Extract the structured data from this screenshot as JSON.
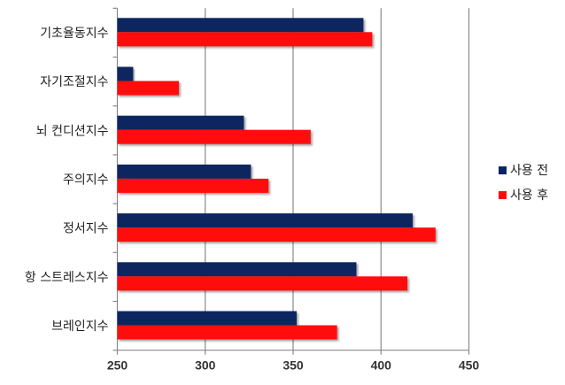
{
  "chart_data": {
    "type": "bar",
    "orientation": "horizontal",
    "categories": [
      "기초율동지수",
      "자기조절지수",
      "뇌 컨디션지수",
      "주의지수",
      "정서지수",
      "항 스트레스지수",
      "브레인지수"
    ],
    "series": [
      {
        "name": "사용 전",
        "color": "#0a2561",
        "values": [
          390,
          259,
          322,
          326,
          418,
          386,
          352
        ]
      },
      {
        "name": "사용 후",
        "color": "#ff0a0a",
        "values": [
          395,
          285,
          360,
          336,
          431,
          415,
          375
        ]
      }
    ],
    "xlim": [
      250,
      450
    ],
    "xticks": [
      "250",
      "300",
      "350",
      "400",
      "450"
    ],
    "grid": true,
    "legend": "right"
  }
}
